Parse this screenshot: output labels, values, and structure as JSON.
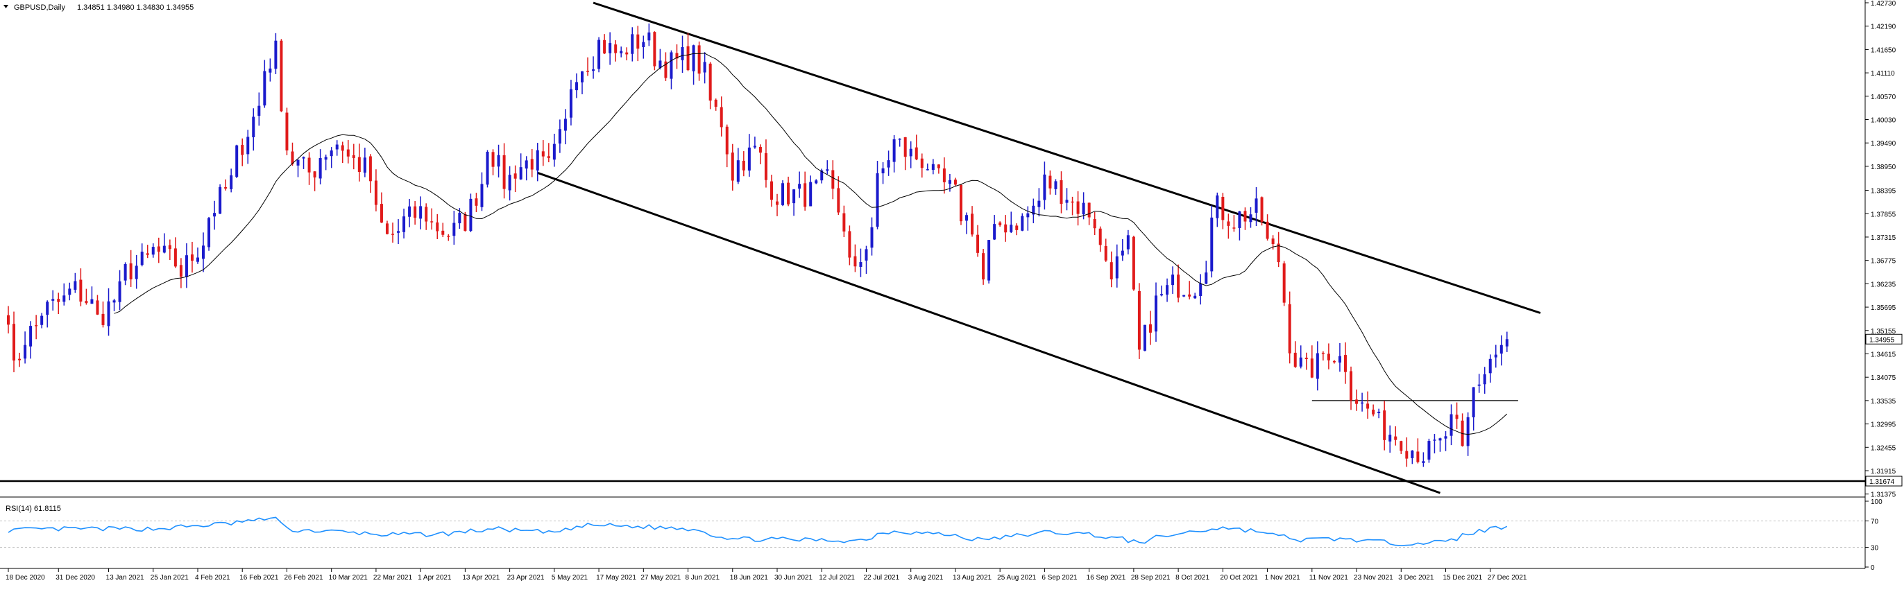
{
  "header": {
    "symbol_label": "GBPUSD,Daily",
    "ohlc": "1.34851 1.34980 1.34830 1.34955"
  },
  "colors": {
    "bull": "#1a1acc",
    "bear": "#e01a1a",
    "ma": "#000000",
    "rsi": "#1e90ff",
    "trendline": "#000000",
    "background": "#ffffff"
  },
  "chart_data": [
    {
      "type": "candlestick",
      "title": "",
      "ylim": [
        1.3137,
        1.4273
      ],
      "y_ticks": [
        "1.42730",
        "1.42190",
        "1.41650",
        "1.41110",
        "1.40570",
        "1.40030",
        "1.39490",
        "1.38950",
        "1.38395",
        "1.37855",
        "1.37315",
        "1.36775",
        "1.36235",
        "1.35695",
        "1.35155",
        "1.34615",
        "1.34075",
        "1.33535",
        "1.32995",
        "1.32455",
        "1.31915",
        "1.31375"
      ],
      "price_tags": [
        {
          "label": "1.34955",
          "value": 1.34955,
          "style": "current"
        },
        {
          "label": "1.31674",
          "value": 1.31674,
          "style": "line"
        }
      ],
      "x_labels": [
        "18 Dec 2020",
        "31 Dec 2020",
        "13 Jan 2021",
        "25 Jan 2021",
        "4 Feb 2021",
        "16 Feb 2021",
        "26 Feb 2021",
        "10 Mar 2021",
        "22 Mar 2021",
        "1 Apr 2021",
        "13 Apr 2021",
        "23 Apr 2021",
        "5 May 2021",
        "17 May 2021",
        "27 May 2021",
        "8 Jun 2021",
        "18 Jun 2021",
        "30 Jun 2021",
        "12 Jul 2021",
        "22 Jul 2021",
        "3 Aug 2021",
        "13 Aug 2021",
        "25 Aug 2021",
        "6 Sep 2021",
        "16 Sep 2021",
        "28 Sep 2021",
        "8 Oct 2021",
        "20 Oct 2021",
        "1 Nov 2021",
        "11 Nov 2021",
        "23 Nov 2021",
        "3 Dec 2021",
        "15 Dec 2021",
        "27 Dec 2021"
      ],
      "keypoints": [
        {
          "date": "18 Dec 2020",
          "close": 1.356
        },
        {
          "date": "21 Dec 2020",
          "close": 1.342
        },
        {
          "date": "23 Dec 2020",
          "close": 1.35
        },
        {
          "date": "28 Dec 2020",
          "close": 1.356
        },
        {
          "date": "5 Jan 2021",
          "close": 1.361
        },
        {
          "date": "11 Jan 2021",
          "close": 1.354
        },
        {
          "date": "18 Jan 2021",
          "close": 1.365
        },
        {
          "date": "25 Jan 2021",
          "close": 1.37
        },
        {
          "date": "1 Feb 2021",
          "close": 1.365
        },
        {
          "date": "8 Feb 2021",
          "close": 1.378
        },
        {
          "date": "15 Feb 2021",
          "close": 1.392
        },
        {
          "date": "22 Feb 2021",
          "close": 1.412
        },
        {
          "date": "24 Feb 2021",
          "close": 1.416
        },
        {
          "date": "26 Feb 2021",
          "close": 1.394
        },
        {
          "date": "4 Mar 2021",
          "close": 1.388
        },
        {
          "date": "11 Mar 2021",
          "close": 1.395
        },
        {
          "date": "18 Mar 2021",
          "close": 1.389
        },
        {
          "date": "24 Mar 2021",
          "close": 1.373
        },
        {
          "date": "1 Apr 2021",
          "close": 1.379
        },
        {
          "date": "8 Apr 2021",
          "close": 1.374
        },
        {
          "date": "13 Apr 2021",
          "close": 1.377
        },
        {
          "date": "19 Apr 2021",
          "close": 1.395
        },
        {
          "date": "22 Apr 2021",
          "close": 1.386
        },
        {
          "date": "29 Apr 2021",
          "close": 1.391
        },
        {
          "date": "4 May 2021",
          "close": 1.389
        },
        {
          "date": "11 May 2021",
          "close": 1.412
        },
        {
          "date": "17 May 2021",
          "close": 1.418
        },
        {
          "date": "21 May 2021",
          "close": 1.415
        },
        {
          "date": "27 May 2021",
          "close": 1.419
        },
        {
          "date": "2 Jun 2021",
          "close": 1.413
        },
        {
          "date": "9 Jun 2021",
          "close": 1.415
        },
        {
          "date": "16 Jun 2021",
          "close": 1.4
        },
        {
          "date": "18 Jun 2021",
          "close": 1.388
        },
        {
          "date": "24 Jun 2021",
          "close": 1.393
        },
        {
          "date": "30 Jun 2021",
          "close": 1.383
        },
        {
          "date": "7 Jul 2021",
          "close": 1.383
        },
        {
          "date": "13 Jul 2021",
          "close": 1.386
        },
        {
          "date": "16 Jul 2021",
          "close": 1.376
        },
        {
          "date": "20 Jul 2021",
          "close": 1.364
        },
        {
          "date": "23 Jul 2021",
          "close": 1.376
        },
        {
          "date": "29 Jul 2021",
          "close": 1.395
        },
        {
          "date": "5 Aug 2021",
          "close": 1.391
        },
        {
          "date": "12 Aug 2021",
          "close": 1.384
        },
        {
          "date": "18 Aug 2021",
          "close": 1.376
        },
        {
          "date": "20 Aug 2021",
          "close": 1.363
        },
        {
          "date": "25 Aug 2021",
          "close": 1.376
        },
        {
          "date": "31 Aug 2021",
          "close": 1.377
        },
        {
          "date": "6 Sep 2021",
          "close": 1.386
        },
        {
          "date": "10 Sep 2021",
          "close": 1.383
        },
        {
          "date": "16 Sep 2021",
          "close": 1.379
        },
        {
          "date": "22 Sep 2021",
          "close": 1.366
        },
        {
          "date": "27 Sep 2021",
          "close": 1.371
        },
        {
          "date": "29 Sep 2021",
          "close": 1.346
        },
        {
          "date": "1 Oct 2021",
          "close": 1.354
        },
        {
          "date": "7 Oct 2021",
          "close": 1.362
        },
        {
          "date": "13 Oct 2021",
          "close": 1.362
        },
        {
          "date": "19 Oct 2021",
          "close": 1.38
        },
        {
          "date": "22 Oct 2021",
          "close": 1.377
        },
        {
          "date": "28 Oct 2021",
          "close": 1.379
        },
        {
          "date": "3 Nov 2021",
          "close": 1.368
        },
        {
          "date": "5 Nov 2021",
          "close": 1.349
        },
        {
          "date": "10 Nov 2021",
          "close": 1.342
        },
        {
          "date": "16 Nov 2021",
          "close": 1.347
        },
        {
          "date": "19 Nov 2021",
          "close": 1.344
        },
        {
          "date": "24 Nov 2021",
          "close": 1.334
        },
        {
          "date": "1 Dec 2021",
          "close": 1.328
        },
        {
          "date": "6 Dec 2021",
          "close": 1.325
        },
        {
          "date": "9 Dec 2021",
          "close": 1.323
        },
        {
          "date": "14 Dec 2021",
          "close": 1.325
        },
        {
          "date": "16 Dec 2021",
          "close": 1.33
        },
        {
          "date": "20 Dec 2021",
          "close": 1.323
        },
        {
          "date": "22 Dec 2021",
          "close": 1.338
        },
        {
          "date": "24 Dec 2021",
          "close": 1.342
        },
        {
          "date": "28 Dec 2021",
          "close": 1.346
        },
        {
          "date": "30 Dec 2021",
          "close": 1.34955
        }
      ],
      "ma_period": 20,
      "horizontal_lines": [
        {
          "value": 1.33535,
          "from": "11 Nov 2021",
          "to": "2 Jan 2022"
        },
        {
          "value": 1.31674,
          "from": "18 Dec 2020",
          "to": "5 Jan 2022"
        }
      ],
      "trendlines": [
        {
          "from": {
            "date": "14 May 2021",
            "value": 1.4273
          },
          "to": {
            "date": "7 Jan 2022",
            "value": 1.3556
          }
        },
        {
          "from": {
            "date": "30 Apr 2021",
            "value": 1.388
          },
          "to": {
            "date": "14 Dec 2021",
            "value": 1.314
          }
        }
      ],
      "grid": false
    },
    {
      "type": "line",
      "name": "RSI(14)",
      "header_label": "RSI(14) 61.8115",
      "ylim": [
        0,
        100
      ],
      "y_ticks": [
        "100",
        "70",
        "30",
        "0"
      ],
      "levels": [
        70,
        30
      ],
      "last_value": 61.8115,
      "keypoints": [
        {
          "date": "18 Dec 2020",
          "value": 56
        },
        {
          "date": "4 Jan 2021",
          "value": 58
        },
        {
          "date": "25 Jan 2021",
          "value": 58
        },
        {
          "date": "12 Feb 2021",
          "value": 66
        },
        {
          "date": "24 Feb 2021",
          "value": 75
        },
        {
          "date": "26 Feb 2021",
          "value": 57
        },
        {
          "date": "10 Mar 2021",
          "value": 54
        },
        {
          "date": "24 Mar 2021",
          "value": 49
        },
        {
          "date": "6 Apr 2021",
          "value": 50
        },
        {
          "date": "20 Apr 2021",
          "value": 58
        },
        {
          "date": "4 May 2021",
          "value": 52
        },
        {
          "date": "14 May 2021",
          "value": 64
        },
        {
          "date": "28 May 2021",
          "value": 61
        },
        {
          "date": "9 Jun 2021",
          "value": 58
        },
        {
          "date": "18 Jun 2021",
          "value": 43
        },
        {
          "date": "30 Jun 2021",
          "value": 42
        },
        {
          "date": "20 Jul 2021",
          "value": 40
        },
        {
          "date": "29 Jul 2021",
          "value": 55
        },
        {
          "date": "12 Aug 2021",
          "value": 49
        },
        {
          "date": "20 Aug 2021",
          "value": 41
        },
        {
          "date": "6 Sep 2021",
          "value": 53
        },
        {
          "date": "16 Sep 2021",
          "value": 50
        },
        {
          "date": "29 Sep 2021",
          "value": 38
        },
        {
          "date": "8 Oct 2021",
          "value": 50
        },
        {
          "date": "20 Oct 2021",
          "value": 60
        },
        {
          "date": "28 Oct 2021",
          "value": 55
        },
        {
          "date": "8 Nov 2021",
          "value": 41
        },
        {
          "date": "19 Nov 2021",
          "value": 43
        },
        {
          "date": "3 Dec 2021",
          "value": 36
        },
        {
          "date": "15 Dec 2021",
          "value": 38
        },
        {
          "date": "22 Dec 2021",
          "value": 53
        },
        {
          "date": "30 Dec 2021",
          "value": 61.8
        }
      ]
    }
  ]
}
